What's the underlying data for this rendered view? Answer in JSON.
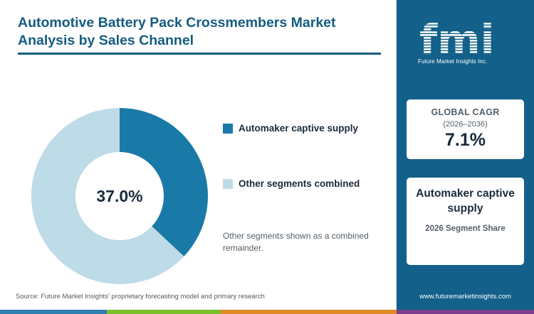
{
  "header": {
    "title": "Automotive Battery Pack Crossmembers Market Analysis by Sales Channel"
  },
  "chart_data": {
    "type": "pie",
    "donut": true,
    "center_label": "37.0%",
    "slices": [
      {
        "label": "Automaker captive supply",
        "value": 37.0,
        "color": "#1a7aa7"
      },
      {
        "label": "Other segments combined",
        "value": 63.0,
        "color": "#bedbe8"
      }
    ],
    "legend_position": "right"
  },
  "note": "Other segments shown as a combined remainder.",
  "source": "Source: Future Market Insights' proprietary forecasting model and primary research",
  "sidebar": {
    "logo_letters": "fmi",
    "logo_text": "Future Market Insights Inc.",
    "cagr": {
      "label": "GLOBAL CAGR",
      "period": "(2026–2036)",
      "value": "7.1%"
    },
    "segment": {
      "title": "Automaker captive supply",
      "subtitle": "2026 Segment Share"
    },
    "website": "www.futuremarketinsights.com"
  },
  "colors": {
    "brand_blue": "#13608a",
    "stripe": [
      "#2f7fb0",
      "#7bbf2c",
      "#e08a28",
      "#7b3d8c"
    ]
  }
}
